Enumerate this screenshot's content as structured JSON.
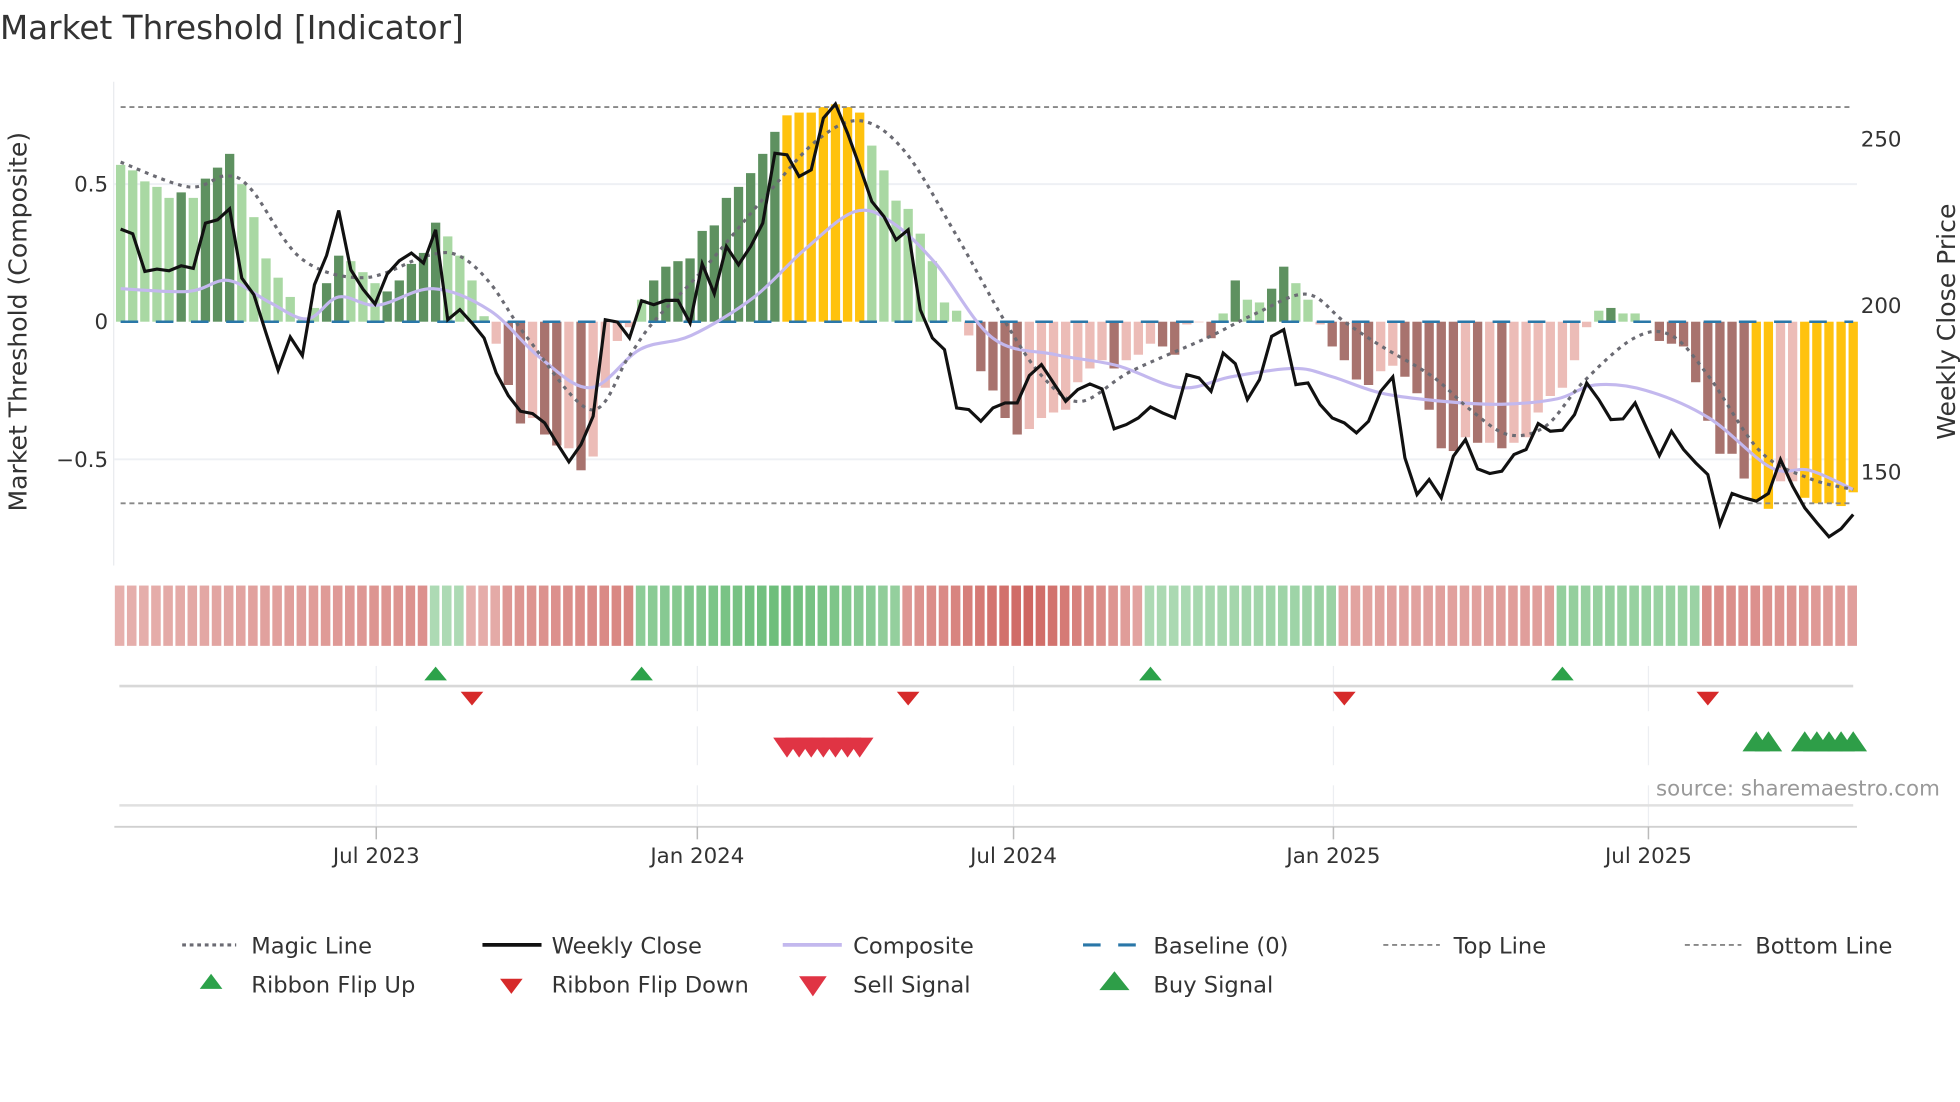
{
  "chart_data": {
    "type": "bar",
    "title": "Market Threshold [Indicator]",
    "ylabel_left": "Market Threshold (Composite)",
    "ylabel_right": "Weekly Close Price",
    "ylim_left": [
      -0.88,
      0.88
    ],
    "ylim_right": [
      130,
      265
    ],
    "left_ticks": [
      {
        "value": 0.5,
        "label": "0.5"
      },
      {
        "value": 0,
        "label": "0"
      },
      {
        "value": -0.5,
        "label": "−0.5"
      }
    ],
    "right_ticks": [
      {
        "value": 250,
        "label": "250"
      },
      {
        "value": 200,
        "label": "200"
      },
      {
        "value": 150,
        "label": "150"
      }
    ],
    "x_unit": "week index",
    "x_ticks": [
      {
        "week": 21.1,
        "label": "Jul 2023"
      },
      {
        "week": 47.6,
        "label": "Jan 2024"
      },
      {
        "week": 73.7,
        "label": "Jul 2024"
      },
      {
        "week": 100.1,
        "label": "Jan 2025"
      },
      {
        "week": 126.1,
        "label": "Jul 2025"
      }
    ],
    "top_line": 0.78,
    "bottom_line": -0.66,
    "baseline": 0,
    "colors": {
      "lg": "#a9d8a3",
      "dg": "#5e9160",
      "lr": "#ecbcb7",
      "dr": "#a8736e",
      "or": "#ffc20e",
      "close": "#111111",
      "composite": "#c3b8ee",
      "magic": "#6b6b73",
      "baseline": "#2a77a8",
      "threshold": "#888888",
      "ribbon_up": "#4caf5c",
      "ribbon_down": "#c8524c",
      "flip_up": "#2ca24a",
      "flip_down": "#d62a2a",
      "sell": "#e03444",
      "buy": "#2e9e48"
    },
    "composite_bars": [
      [
        0.57,
        "lg"
      ],
      [
        0.55,
        "lg"
      ],
      [
        0.51,
        "lg"
      ],
      [
        0.49,
        "lg"
      ],
      [
        0.45,
        "lg"
      ],
      [
        0.47,
        "dg"
      ],
      [
        0.45,
        "lg"
      ],
      [
        0.52,
        "dg"
      ],
      [
        0.56,
        "dg"
      ],
      [
        0.61,
        "dg"
      ],
      [
        0.5,
        "lg"
      ],
      [
        0.38,
        "lg"
      ],
      [
        0.23,
        "lg"
      ],
      [
        0.16,
        "lg"
      ],
      [
        0.09,
        "lg"
      ],
      [
        0.01,
        "lg"
      ],
      [
        0.05,
        "lg"
      ],
      [
        0.14,
        "dg"
      ],
      [
        0.24,
        "dg"
      ],
      [
        0.22,
        "lg"
      ],
      [
        0.18,
        "lg"
      ],
      [
        0.14,
        "lg"
      ],
      [
        0.11,
        "dg"
      ],
      [
        0.15,
        "dg"
      ],
      [
        0.21,
        "dg"
      ],
      [
        0.25,
        "dg"
      ],
      [
        0.36,
        "dg"
      ],
      [
        0.31,
        "lg"
      ],
      [
        0.24,
        "lg"
      ],
      [
        0.15,
        "lg"
      ],
      [
        0.02,
        "lg"
      ],
      [
        -0.08,
        "lr"
      ],
      [
        -0.23,
        "dr"
      ],
      [
        -0.37,
        "dr"
      ],
      [
        -0.35,
        "lr"
      ],
      [
        -0.41,
        "dr"
      ],
      [
        -0.45,
        "dr"
      ],
      [
        -0.46,
        "lr"
      ],
      [
        -0.54,
        "dr"
      ],
      [
        -0.49,
        "lr"
      ],
      [
        -0.24,
        "lr"
      ],
      [
        -0.07,
        "lr"
      ],
      [
        -0.02,
        "lr"
      ],
      [
        0.08,
        "lg"
      ],
      [
        0.15,
        "dg"
      ],
      [
        0.2,
        "dg"
      ],
      [
        0.22,
        "dg"
      ],
      [
        0.23,
        "dg"
      ],
      [
        0.33,
        "dg"
      ],
      [
        0.35,
        "dg"
      ],
      [
        0.45,
        "dg"
      ],
      [
        0.49,
        "dg"
      ],
      [
        0.54,
        "dg"
      ],
      [
        0.61,
        "dg"
      ],
      [
        0.69,
        "dg"
      ],
      [
        0.75,
        "or"
      ],
      [
        0.76,
        "or"
      ],
      [
        0.76,
        "or"
      ],
      [
        0.78,
        "or"
      ],
      [
        0.79,
        "or"
      ],
      [
        0.78,
        "or"
      ],
      [
        0.76,
        "or"
      ],
      [
        0.64,
        "lg"
      ],
      [
        0.55,
        "lg"
      ],
      [
        0.44,
        "lg"
      ],
      [
        0.41,
        "lg"
      ],
      [
        0.32,
        "lg"
      ],
      [
        0.22,
        "lg"
      ],
      [
        0.07,
        "lg"
      ],
      [
        0.04,
        "lg"
      ],
      [
        -0.05,
        "lr"
      ],
      [
        -0.18,
        "dr"
      ],
      [
        -0.25,
        "dr"
      ],
      [
        -0.35,
        "dr"
      ],
      [
        -0.41,
        "dr"
      ],
      [
        -0.39,
        "lr"
      ],
      [
        -0.35,
        "lr"
      ],
      [
        -0.33,
        "lr"
      ],
      [
        -0.32,
        "lr"
      ],
      [
        -0.22,
        "lr"
      ],
      [
        -0.17,
        "lr"
      ],
      [
        -0.14,
        "lr"
      ],
      [
        -0.17,
        "dr"
      ],
      [
        -0.14,
        "lr"
      ],
      [
        -0.12,
        "lr"
      ],
      [
        -0.08,
        "lr"
      ],
      [
        -0.09,
        "dr"
      ],
      [
        -0.12,
        "dr"
      ],
      [
        -0.01,
        "lr"
      ],
      [
        0.0,
        "lr"
      ],
      [
        -0.06,
        "dr"
      ],
      [
        0.03,
        "lg"
      ],
      [
        0.15,
        "dg"
      ],
      [
        0.08,
        "lg"
      ],
      [
        0.07,
        "lg"
      ],
      [
        0.12,
        "dg"
      ],
      [
        0.2,
        "dg"
      ],
      [
        0.14,
        "lg"
      ],
      [
        0.08,
        "lg"
      ],
      [
        -0.01,
        "lr"
      ],
      [
        -0.09,
        "dr"
      ],
      [
        -0.14,
        "dr"
      ],
      [
        -0.21,
        "dr"
      ],
      [
        -0.23,
        "dr"
      ],
      [
        -0.18,
        "lr"
      ],
      [
        -0.16,
        "lr"
      ],
      [
        -0.2,
        "dr"
      ],
      [
        -0.26,
        "dr"
      ],
      [
        -0.32,
        "dr"
      ],
      [
        -0.46,
        "dr"
      ],
      [
        -0.47,
        "dr"
      ],
      [
        -0.42,
        "lr"
      ],
      [
        -0.44,
        "dr"
      ],
      [
        -0.44,
        "lr"
      ],
      [
        -0.46,
        "dr"
      ],
      [
        -0.44,
        "lr"
      ],
      [
        -0.42,
        "lr"
      ],
      [
        -0.33,
        "lr"
      ],
      [
        -0.27,
        "lr"
      ],
      [
        -0.24,
        "lr"
      ],
      [
        -0.14,
        "lr"
      ],
      [
        -0.02,
        "lr"
      ],
      [
        0.04,
        "lg"
      ],
      [
        0.05,
        "dg"
      ],
      [
        0.03,
        "lg"
      ],
      [
        0.03,
        "lg"
      ],
      [
        0.0,
        "lr"
      ],
      [
        -0.07,
        "dr"
      ],
      [
        -0.08,
        "dr"
      ],
      [
        -0.09,
        "dr"
      ],
      [
        -0.22,
        "dr"
      ],
      [
        -0.36,
        "dr"
      ],
      [
        -0.48,
        "dr"
      ],
      [
        -0.48,
        "dr"
      ],
      [
        -0.57,
        "dr"
      ],
      [
        -0.65,
        "or"
      ],
      [
        -0.68,
        "or"
      ],
      [
        -0.58,
        "lr"
      ],
      [
        -0.58,
        "lr"
      ],
      [
        -0.64,
        "or"
      ],
      [
        -0.66,
        "or"
      ],
      [
        -0.66,
        "or"
      ],
      [
        -0.67,
        "or"
      ],
      [
        -0.62,
        "or"
      ]
    ],
    "weekly_close": [
      222.9,
      221.5,
      210.2,
      210.9,
      210.4,
      211.9,
      211.1,
      224.7,
      225.7,
      229.0,
      208.2,
      203.2,
      191.7,
      180.5,
      190.5,
      184.9,
      206.2,
      215.0,
      228.5,
      210.7,
      204.9,
      200.4,
      209.4,
      213.4,
      215.7,
      212.7,
      222.7,
      195.7,
      198.7,
      194.7,
      190.2,
      179.7,
      172.9,
      168.2,
      167.5,
      164.7,
      158.7,
      153.0,
      158.2,
      166.7,
      195.7,
      195.0,
      190.2,
      201.4,
      200.2,
      201.5,
      201.5,
      194.7,
      212.5,
      203.5,
      217.7,
      212.2,
      217.7,
      224.7,
      245.7,
      245.2,
      238.7,
      240.7,
      256.2,
      260.5,
      251.7,
      241.7,
      231.2,
      226.7,
      219.7,
      222.7,
      198.7,
      190.2,
      186.7,
      169.2,
      168.7,
      165.2,
      169.2,
      170.7,
      170.7,
      178.9,
      182.2,
      176.7,
      171.2,
      174.7,
      176.4,
      174.9,
      162.9,
      164.2,
      166.2,
      169.5,
      167.7,
      166.2,
      179.2,
      178.2,
      174.2,
      185.7,
      182.5,
      171.7,
      177.7,
      190.7,
      192.7,
      176.2,
      176.7,
      170.2,
      166.2,
      164.7,
      161.7,
      165.2,
      174.2,
      178.5,
      154.2,
      143.2,
      147.7,
      142.2,
      154.7,
      159.7,
      150.9,
      149.5,
      150.2,
      155.2,
      156.7,
      164.5,
      162.2,
      162.5,
      167.2,
      176.7,
      171.7,
      165.7,
      165.9,
      170.7,
      162.7,
      154.9,
      162.2,
      156.7,
      152.7,
      149.2,
      134.2,
      143.5,
      142.2,
      141.2,
      143.5,
      153.7,
      145.7,
      139.2,
      134.7,
      130.5,
      132.9,
      137.2
    ],
    "composite_line": [
      [
        0,
        0.12
      ],
      [
        5.6,
        0.11
      ],
      [
        8.9,
        0.15
      ],
      [
        12.3,
        0.07
      ],
      [
        15.4,
        0.01
      ],
      [
        18,
        0.09
      ],
      [
        21.2,
        0.06
      ],
      [
        25.8,
        0.12
      ],
      [
        30.5,
        0.04
      ],
      [
        34.6,
        -0.13
      ],
      [
        38.8,
        -0.24
      ],
      [
        42.9,
        -0.1
      ],
      [
        47.1,
        -0.05
      ],
      [
        52.3,
        0.09
      ],
      [
        56.4,
        0.26
      ],
      [
        60.6,
        0.4
      ],
      [
        63.7,
        0.36
      ],
      [
        67.3,
        0.21
      ],
      [
        72,
        -0.06
      ],
      [
        77.2,
        -0.12
      ],
      [
        82.3,
        -0.16
      ],
      [
        87.5,
        -0.24
      ],
      [
        91.7,
        -0.2
      ],
      [
        96.9,
        -0.17
      ],
      [
        100,
        -0.2
      ],
      [
        104.1,
        -0.26
      ],
      [
        109.3,
        -0.29
      ],
      [
        114,
        -0.3
      ],
      [
        118.6,
        -0.28
      ],
      [
        121.7,
        -0.23
      ],
      [
        125.9,
        -0.25
      ],
      [
        131.1,
        -0.35
      ],
      [
        136.2,
        -0.53
      ],
      [
        139.4,
        -0.54
      ],
      [
        143,
        -0.61
      ]
    ],
    "magic_line": [
      [
        0,
        0.58
      ],
      [
        5.6,
        0.49
      ],
      [
        8.7,
        0.53
      ],
      [
        10.8,
        0.48
      ],
      [
        14.9,
        0.23
      ],
      [
        20.1,
        0.16
      ],
      [
        25.3,
        0.24
      ],
      [
        27.9,
        0.24
      ],
      [
        30.5,
        0.14
      ],
      [
        33.6,
        -0.06
      ],
      [
        38.8,
        -0.32
      ],
      [
        41.9,
        -0.13
      ],
      [
        44,
        0
      ],
      [
        48.1,
        0.19
      ],
      [
        53.3,
        0.46
      ],
      [
        57.5,
        0.66
      ],
      [
        61.1,
        0.73
      ],
      [
        64.7,
        0.62
      ],
      [
        68.9,
        0.32
      ],
      [
        73,
        0
      ],
      [
        76.1,
        -0.2
      ],
      [
        79.2,
        -0.29
      ],
      [
        83.4,
        -0.18
      ],
      [
        89.6,
        -0.06
      ],
      [
        93.7,
        0.03
      ],
      [
        97.9,
        0.1
      ],
      [
        101,
        0
      ],
      [
        104.1,
        -0.09
      ],
      [
        108.3,
        -0.2
      ],
      [
        111.4,
        -0.32
      ],
      [
        114.5,
        -0.41
      ],
      [
        117.6,
        -0.38
      ],
      [
        120.7,
        -0.22
      ],
      [
        124.9,
        -0.06
      ],
      [
        128,
        -0.05
      ],
      [
        131.1,
        -0.2
      ],
      [
        135.3,
        -0.47
      ],
      [
        139.4,
        -0.57
      ],
      [
        143,
        -0.61
      ]
    ],
    "ribbon_runs": [
      {
        "from": 0,
        "to": 25,
        "trend": "down",
        "strength": [
          0.3,
          0.55
        ]
      },
      {
        "from": 26,
        "to": 28,
        "trend": "up",
        "strength": [
          0.3,
          0.3
        ]
      },
      {
        "from": 29,
        "to": 31,
        "trend": "down",
        "strength": [
          0.3,
          0.35
        ]
      },
      {
        "from": 32,
        "to": 42,
        "trend": "down",
        "strength": [
          0.5,
          0.65
        ]
      },
      {
        "from": 43,
        "to": 54,
        "trend": "up",
        "strength": [
          0.55,
          0.8
        ]
      },
      {
        "from": 55,
        "to": 64,
        "trend": "up",
        "strength": [
          0.8,
          0.5
        ]
      },
      {
        "from": 65,
        "to": 75,
        "trend": "down",
        "strength": [
          0.5,
          0.9
        ]
      },
      {
        "from": 76,
        "to": 84,
        "trend": "down",
        "strength": [
          0.85,
          0.4
        ]
      },
      {
        "from": 85,
        "to": 100,
        "trend": "up",
        "strength": [
          0.3,
          0.45
        ]
      },
      {
        "from": 101,
        "to": 118,
        "trend": "down",
        "strength": [
          0.4,
          0.45
        ]
      },
      {
        "from": 119,
        "to": 130,
        "trend": "up",
        "strength": [
          0.5,
          0.45
        ]
      },
      {
        "from": 131,
        "to": 143,
        "trend": "down",
        "strength": [
          0.6,
          0.45
        ]
      }
    ],
    "ribbon_flip_up": [
      26,
      43,
      85,
      119
    ],
    "ribbon_flip_down": [
      29,
      65,
      101,
      131
    ],
    "sell_signals": [
      55,
      56,
      57,
      58,
      59,
      60,
      61
    ],
    "buy_signals": [
      135,
      136,
      139,
      140,
      141,
      142,
      143
    ],
    "legend": {
      "magic": "Magic Line",
      "close": "Weekly Close",
      "composite": "Composite",
      "baseline": "Baseline (0)",
      "top": "Top Line",
      "bottom": "Bottom Line",
      "flip_up": "Ribbon Flip Up",
      "flip_down": "Ribbon Flip Down",
      "sell": "Sell Signal",
      "buy": "Buy Signal"
    },
    "source": "source: sharemaestro.com"
  }
}
